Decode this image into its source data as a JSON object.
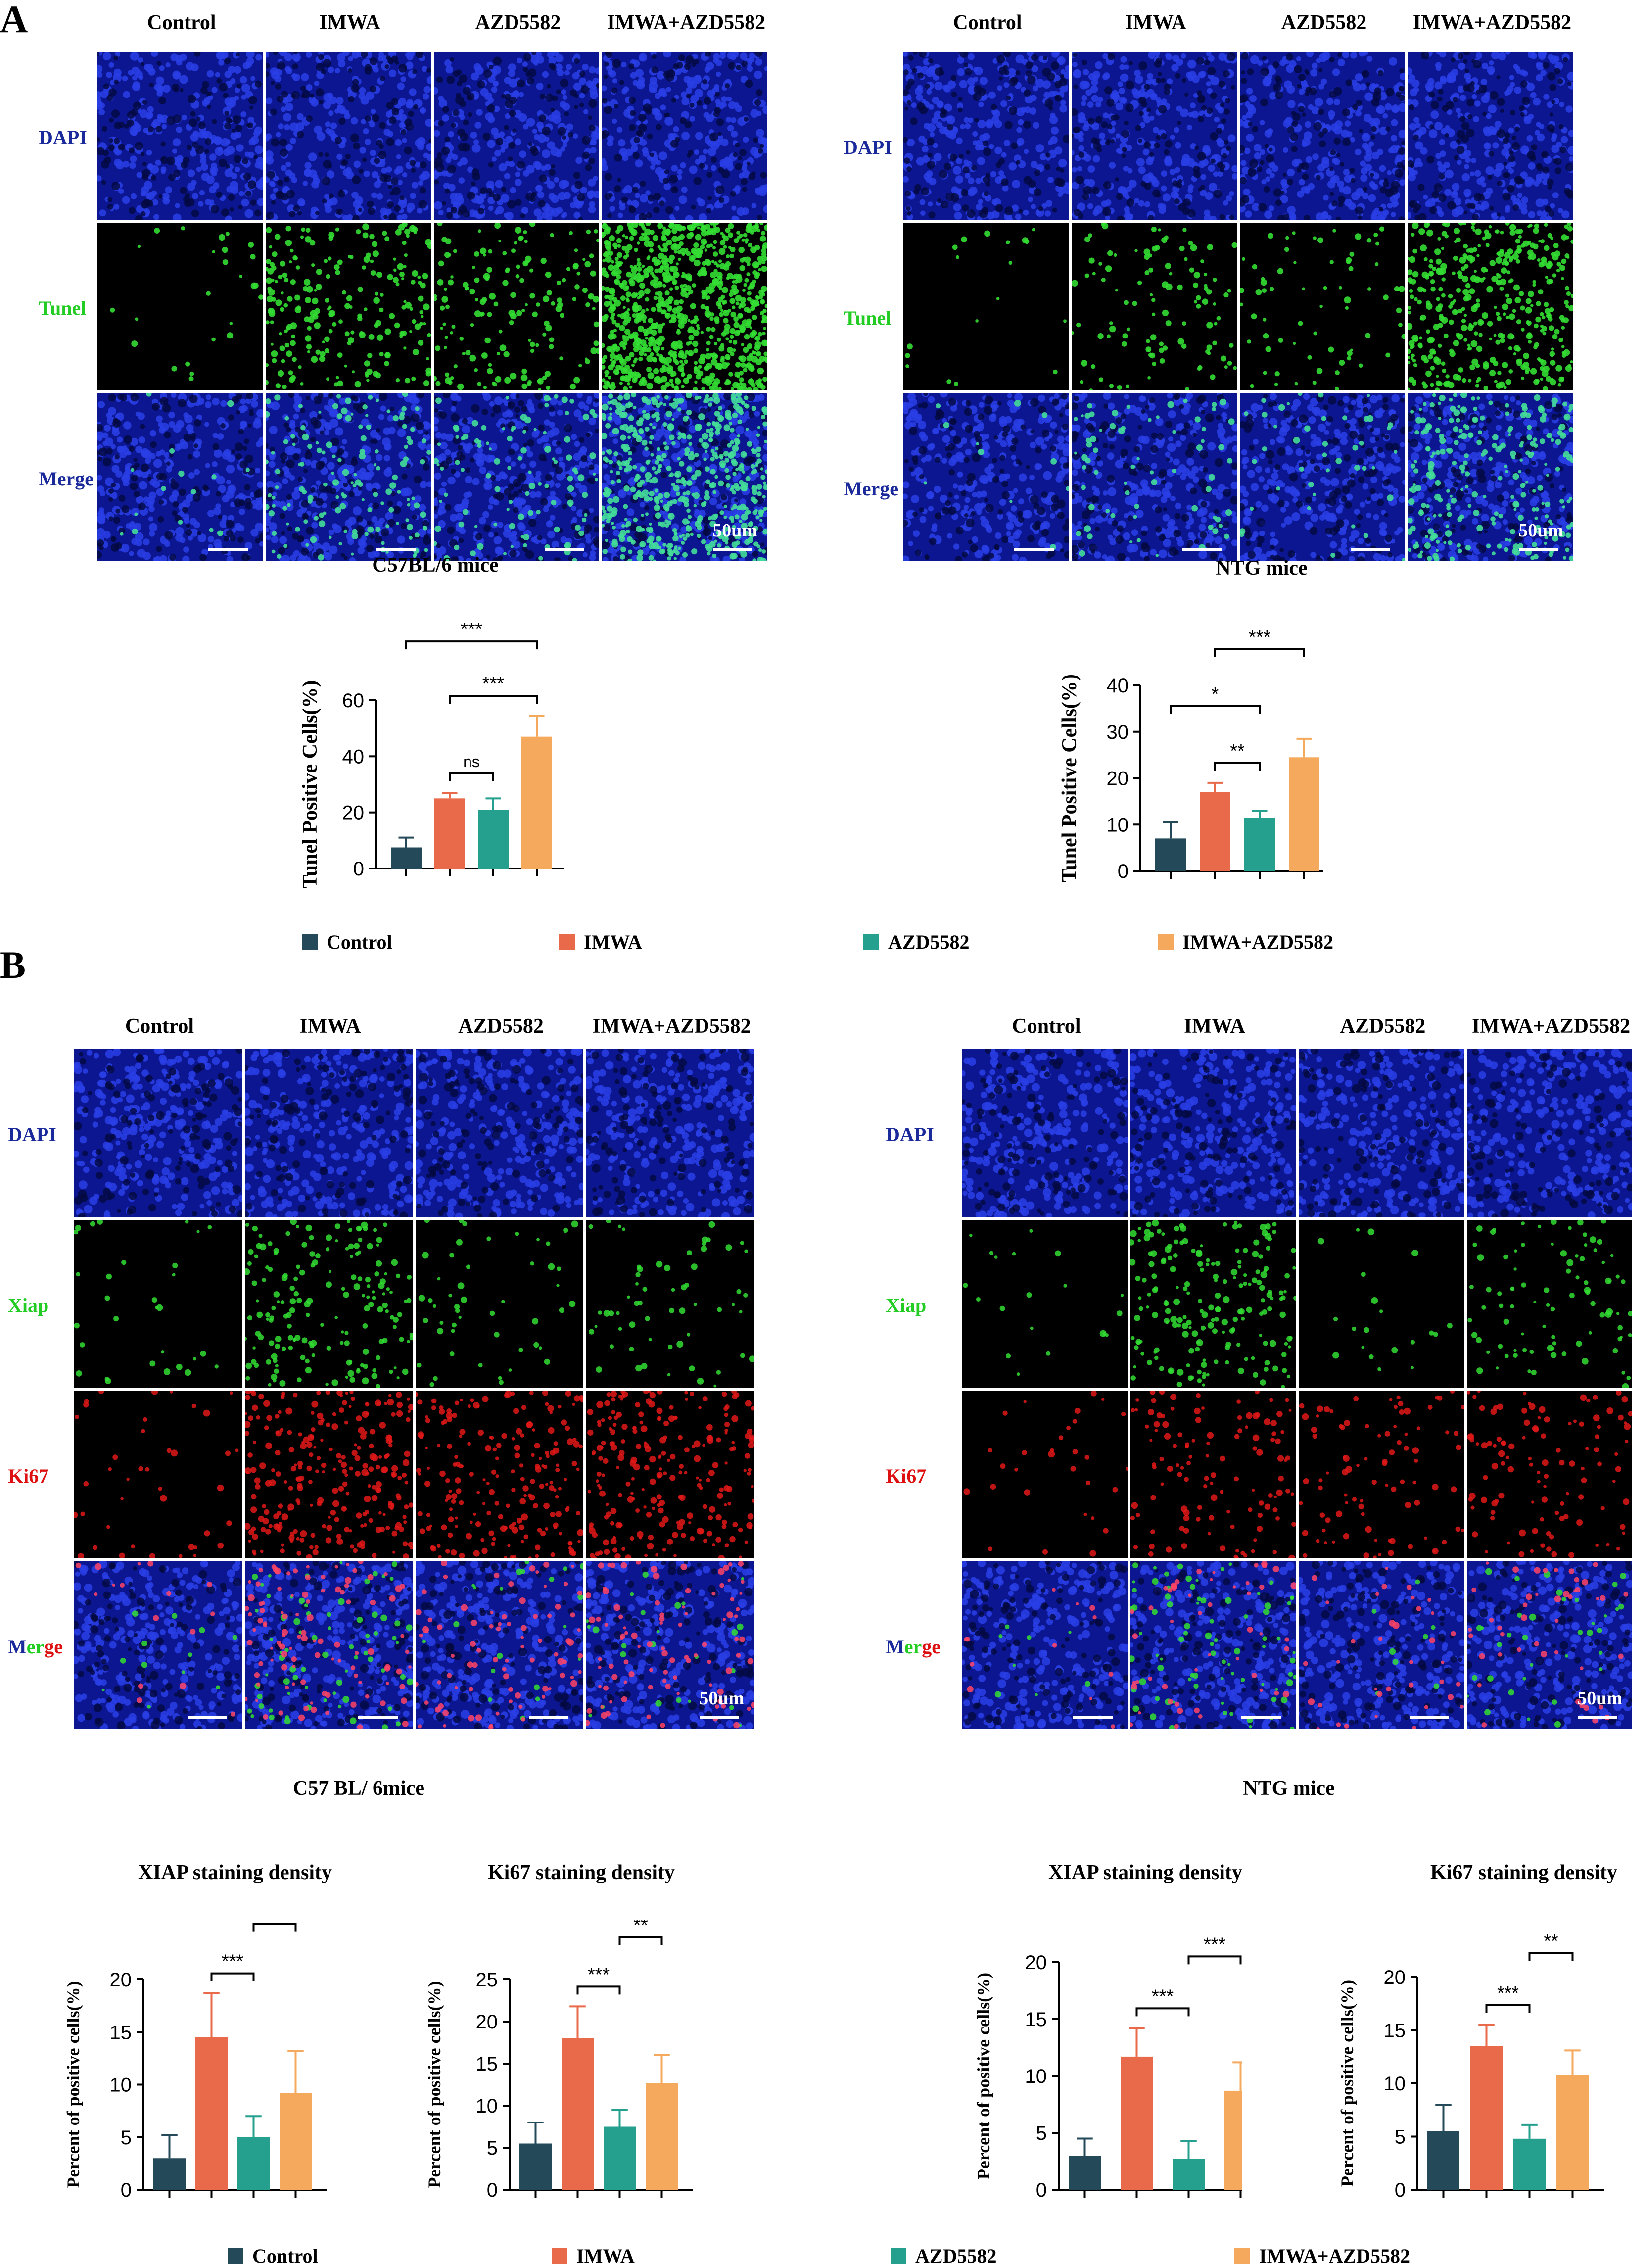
{
  "colors": {
    "control": "#244a5a",
    "imwa": "#e96a4a",
    "azd5582": "#26a08e",
    "combo": "#f4a95c",
    "dapi": "#1b2fc0",
    "tunel_green": "#33dd33",
    "ki67_red": "#e01818",
    "label_blue": "#1a2a9a",
    "label_green": "#22cc22",
    "label_red": "#dd1111"
  },
  "panelA": {
    "letter": "A",
    "groups": [
      "Control",
      "IMWA",
      "AZD5582",
      "IMWA+AZD5582"
    ],
    "rows": [
      "DAPI",
      "Tunel",
      "Merge"
    ],
    "scale_label": "50um",
    "left_caption": "C57BL/6 mice",
    "right_caption": "NTG mice",
    "legend": [
      "Control",
      "IMWA",
      "AZD5582",
      "IMWA+AZD5582"
    ]
  },
  "panelB": {
    "letter": "B",
    "groups": [
      "Control",
      "IMWA",
      "AZD5582",
      "IMWA+AZD5582"
    ],
    "rows": [
      "DAPI",
      "Xiap",
      "Ki67",
      "Merge"
    ],
    "merge_parts": [
      "M",
      "er",
      "ge"
    ],
    "scale_label": "50um",
    "left_caption": "C57 BL/ 6mice",
    "right_caption": "NTG mice",
    "legend": [
      "Control",
      "IMWA",
      "AZD5582",
      "IMWA+AZD5582"
    ]
  },
  "chart_data": [
    {
      "type": "bar",
      "panel": "A-left",
      "title": "",
      "ylabel": "Tunel Positive Cells(%)",
      "categories": [
        "Control",
        "IMWA",
        "AZD5582",
        "IMWA+AZD5582"
      ],
      "values": [
        7.5,
        25,
        21,
        47
      ],
      "errors": [
        3.5,
        2,
        4,
        7.5
      ],
      "ylim": [
        0,
        60
      ],
      "yticks": [
        0,
        20,
        40,
        60
      ],
      "brackets": [
        {
          "from": 1,
          "to": 2,
          "label": "ns"
        },
        {
          "from": 1,
          "to": 3,
          "label": "***"
        },
        {
          "from": 0,
          "to": 3,
          "label": "***"
        }
      ]
    },
    {
      "type": "bar",
      "panel": "A-right",
      "title": "",
      "ylabel": "Tunel Positive Cells(%)",
      "categories": [
        "Control",
        "IMWA",
        "AZD5582",
        "IMWA+AZD5582"
      ],
      "values": [
        7,
        17,
        11.5,
        24.5
      ],
      "errors": [
        3.5,
        2,
        1.5,
        4
      ],
      "ylim": [
        0,
        40
      ],
      "yticks": [
        0,
        10,
        20,
        30,
        40
      ],
      "brackets": [
        {
          "from": 1,
          "to": 2,
          "label": "**"
        },
        {
          "from": 0,
          "to": 2,
          "label": "*"
        },
        {
          "from": 1,
          "to": 3,
          "label": "***"
        }
      ]
    },
    {
      "type": "bar",
      "panel": "B-left-1",
      "title": "XIAP staining density",
      "ylabel": "Percent of positive cells(%)",
      "categories": [
        "Control",
        "IMWA",
        "AZD5582",
        "IMWA+AZD5582"
      ],
      "values": [
        3,
        14.5,
        5,
        9.2
      ],
      "errors": [
        2.2,
        4.2,
        2,
        4
      ],
      "ylim": [
        0,
        20
      ],
      "yticks": [
        0,
        5,
        10,
        15,
        20
      ],
      "brackets": [
        {
          "from": 1,
          "to": 2,
          "label": "***"
        },
        {
          "from": 2,
          "to": 3,
          "label": "**"
        },
        {
          "from": 1,
          "to": 3,
          "label": "**"
        }
      ]
    },
    {
      "type": "bar",
      "panel": "B-left-2",
      "title": "Ki67 staining density",
      "ylabel": "Percent of positive cells(%)",
      "categories": [
        "Control",
        "IMWA",
        "AZD5582",
        "IMWA+AZD5582"
      ],
      "values": [
        5.5,
        18,
        7.5,
        12.7
      ],
      "errors": [
        2.5,
        3.8,
        2,
        3.3
      ],
      "ylim": [
        0,
        25
      ],
      "yticks": [
        0,
        5,
        10,
        15,
        20,
        25
      ],
      "brackets": [
        {
          "from": 1,
          "to": 2,
          "label": "***"
        },
        {
          "from": 2,
          "to": 3,
          "label": "**"
        },
        {
          "from": 1,
          "to": 3,
          "label": "**"
        }
      ]
    },
    {
      "type": "bar",
      "panel": "B-right-1",
      "title": "XIAP staining density",
      "ylabel": "Percent of positive cells(%)",
      "categories": [
        "Control",
        "IMWA",
        "AZD5582",
        "IMWA+AZD5582"
      ],
      "values": [
        3,
        11.7,
        2.7,
        8.7
      ],
      "errors": [
        1.5,
        2.5,
        1.6,
        2.5
      ],
      "ylim": [
        0,
        20
      ],
      "yticks": [
        0,
        5,
        10,
        15,
        20
      ],
      "brackets": [
        {
          "from": 1,
          "to": 2,
          "label": "***"
        },
        {
          "from": 2,
          "to": 3,
          "label": "***"
        },
        {
          "from": 1,
          "to": 3,
          "label": "*"
        }
      ]
    },
    {
      "type": "bar",
      "panel": "B-right-2",
      "title": "Ki67 staining density",
      "ylabel": "Percent of positive cells(%)",
      "categories": [
        "Control",
        "IMWA",
        "AZD5582",
        "IMWA+AZD5582"
      ],
      "values": [
        5.5,
        13.5,
        4.8,
        10.8
      ],
      "errors": [
        2.5,
        2,
        1.3,
        2.3
      ],
      "ylim": [
        0,
        20
      ],
      "yticks": [
        0,
        5,
        10,
        15,
        20
      ],
      "brackets": [
        {
          "from": 1,
          "to": 2,
          "label": "***"
        },
        {
          "from": 2,
          "to": 3,
          "label": "**"
        },
        {
          "from": 1,
          "to": 3,
          "label": "*"
        }
      ]
    }
  ]
}
